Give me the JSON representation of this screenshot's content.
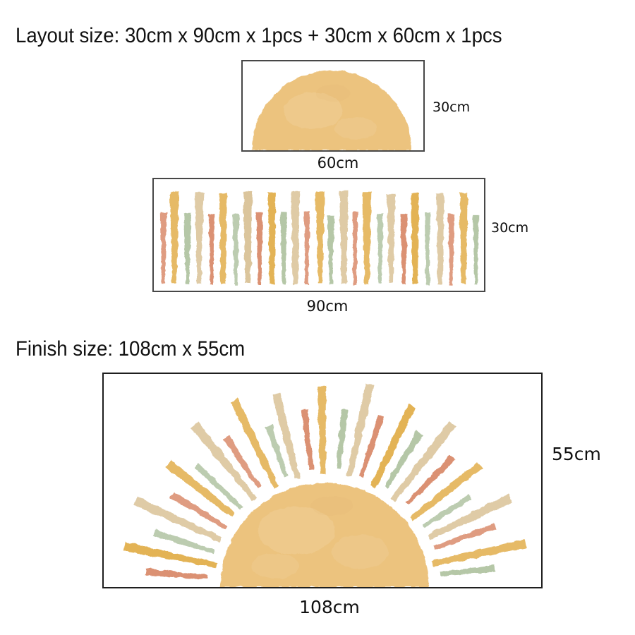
{
  "titles": {
    "layout": "Layout size: 30cm x 90cm x 1pcs + 30cm x 60cm x 1pcs",
    "finish": "Finish size: 108cm x 55cm"
  },
  "colors": {
    "sun": "#ecc37e",
    "gold": "#e3b355",
    "tan": "#dbc59c",
    "salmon": "#db9173",
    "green": "#b5c7a7",
    "panel_border": "#474747",
    "text": "#101010",
    "background": "#ffffff"
  },
  "panels": {
    "half_sun": {
      "width_label": "60cm",
      "height_label": "30cm"
    },
    "rays_strip": {
      "width_label": "90cm",
      "height_label": "30cm"
    },
    "finished_sun": {
      "width_label": "108cm",
      "height_label": "55cm"
    }
  },
  "figures": {
    "rays_strip": {
      "count": 27,
      "cycle": [
        "salmon",
        "gold",
        "green",
        "tan"
      ]
    },
    "finished_sun": {
      "count": 27,
      "cycle": [
        "salmon",
        "gold",
        "green",
        "tan"
      ]
    }
  }
}
